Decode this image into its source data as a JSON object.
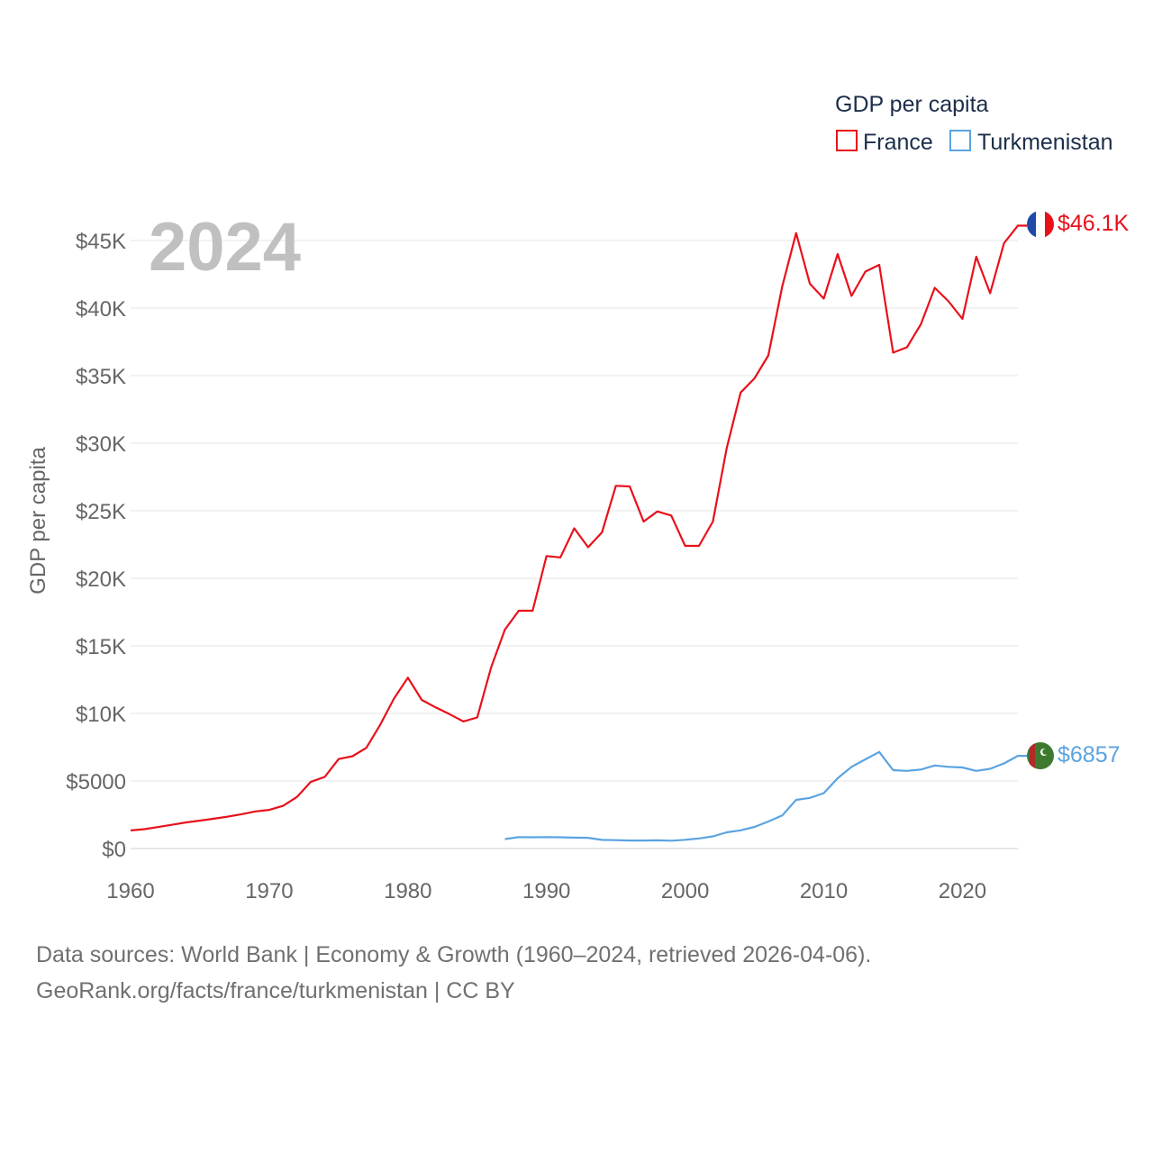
{
  "chart_data": {
    "type": "line",
    "title": "GDP per capita",
    "year_label": "2024",
    "ylabel": "GDP per capita",
    "xlabel": "",
    "xlim": [
      1960,
      2024
    ],
    "ylim": [
      0,
      45000
    ],
    "grid": true,
    "legend_position": "top-right",
    "x_ticks": [
      1960,
      1970,
      1980,
      1990,
      2000,
      2010,
      2020
    ],
    "y_ticks": [
      {
        "value": 0,
        "label": "$0"
      },
      {
        "value": 5000,
        "label": "$5000"
      },
      {
        "value": 10000,
        "label": "$10K"
      },
      {
        "value": 15000,
        "label": "$15K"
      },
      {
        "value": 20000,
        "label": "$20K"
      },
      {
        "value": 25000,
        "label": "$25K"
      },
      {
        "value": 30000,
        "label": "$30K"
      },
      {
        "value": 35000,
        "label": "$35K"
      },
      {
        "value": 40000,
        "label": "$40K"
      },
      {
        "value": 45000,
        "label": "$45K"
      }
    ],
    "series": [
      {
        "name": "France",
        "color": "#e8111b",
        "end_label": "$46.1K",
        "flag": "france-flag-icon",
        "x": [
          1960,
          1961,
          1962,
          1963,
          1964,
          1965,
          1966,
          1967,
          1968,
          1969,
          1970,
          1971,
          1972,
          1973,
          1974,
          1975,
          1976,
          1977,
          1978,
          1979,
          1980,
          1981,
          1982,
          1983,
          1984,
          1985,
          1986,
          1987,
          1988,
          1989,
          1990,
          1991,
          1992,
          1993,
          1994,
          1995,
          1996,
          1997,
          1998,
          1999,
          2000,
          2001,
          2002,
          2003,
          2004,
          2005,
          2006,
          2007,
          2008,
          2009,
          2010,
          2011,
          2012,
          2013,
          2014,
          2015,
          2016,
          2017,
          2018,
          2019,
          2020,
          2021,
          2022,
          2023,
          2024
        ],
        "values": [
          1340,
          1430,
          1590,
          1760,
          1930,
          2070,
          2210,
          2360,
          2540,
          2750,
          2860,
          3160,
          3820,
          4940,
          5300,
          6620,
          6830,
          7450,
          9150,
          11100,
          12650,
          11000,
          10450,
          9950,
          9410,
          9700,
          13400,
          16200,
          17600,
          17600,
          21650,
          21550,
          23700,
          22300,
          23400,
          26850,
          26800,
          24200,
          24950,
          24650,
          22400,
          22400,
          24200,
          29650,
          33750,
          34800,
          36500,
          41600,
          45550,
          41800,
          40700,
          44000,
          40900,
          42700,
          43200,
          36700,
          37100,
          38800,
          41500,
          40500,
          39200,
          43800,
          41100,
          44800,
          46100
        ]
      },
      {
        "name": "Turkmenistan",
        "color": "#5ba3e0",
        "end_label": "$6857",
        "flag": "turkmenistan-flag-icon",
        "x": [
          1987,
          1988,
          1989,
          1990,
          1991,
          1992,
          1993,
          1994,
          1995,
          1996,
          1997,
          1998,
          1999,
          2000,
          2001,
          2002,
          2003,
          2004,
          2005,
          2006,
          2007,
          2008,
          2009,
          2010,
          2011,
          2012,
          2013,
          2014,
          2015,
          2016,
          2017,
          2018,
          2019,
          2020,
          2021,
          2022,
          2023,
          2024
        ],
        "values": [
          700,
          850,
          830,
          850,
          830,
          810,
          790,
          640,
          620,
          590,
          590,
          610,
          580,
          650,
          750,
          900,
          1200,
          1350,
          1600,
          2000,
          2450,
          3600,
          3750,
          4100,
          5200,
          6050,
          6600,
          7150,
          5800,
          5750,
          5850,
          6150,
          6050,
          6000,
          5750,
          5900,
          6300,
          6857
        ]
      }
    ]
  },
  "footer": {
    "line1": "Data sources: World Bank | Economy & Growth (1960–2024, retrieved 2026-04-06).",
    "line2": "GeoRank.org/facts/france/turkmenistan | CC BY"
  }
}
